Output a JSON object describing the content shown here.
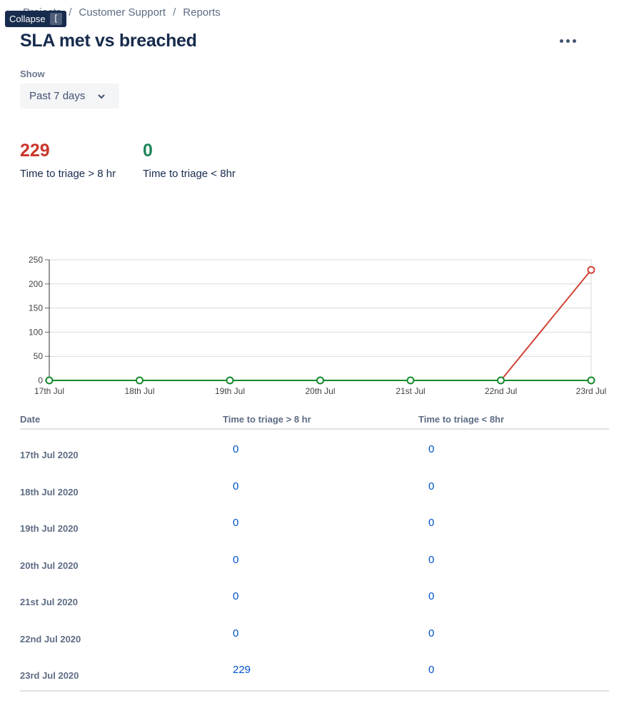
{
  "breadcrumb": {
    "items": [
      "Projects",
      "Customer Support",
      "Reports"
    ],
    "separator": "/"
  },
  "tooltip": {
    "label": "Collapse",
    "shortcut": "["
  },
  "page": {
    "title": "SLA met vs breached",
    "more_icon": "more-horizontal-icon"
  },
  "filter": {
    "label": "Show",
    "selected": "Past 7 days",
    "icon": "chevron-down-icon"
  },
  "stats": [
    {
      "value": "229",
      "label": "Time to triage > 8 hr",
      "color": "#c9372c"
    },
    {
      "value": "0",
      "label": "Time to triage < 8hr",
      "color": "#1f845a"
    }
  ],
  "chart_data": {
    "type": "line",
    "categories": [
      "17th Jul",
      "18th Jul",
      "19th Jul",
      "20th Jul",
      "21st Jul",
      "22nd Jul",
      "23rd Jul"
    ],
    "ylim": [
      0,
      250
    ],
    "yticks": [
      0,
      50,
      100,
      150,
      200,
      250
    ],
    "grid": true,
    "series": [
      {
        "name": "Time to triage > 8 hr",
        "color": "#d04437",
        "values": [
          0,
          0,
          0,
          0,
          0,
          0,
          229
        ]
      },
      {
        "name": "Time to triage < 8hr",
        "color": "#14892c",
        "values": [
          0,
          0,
          0,
          0,
          0,
          0,
          0
        ]
      }
    ]
  },
  "table": {
    "headers": [
      "Date",
      "Time to triage > 8 hr",
      "Time to triage < 8hr"
    ],
    "rows": [
      {
        "date": "17th Jul 2020",
        "over": "0",
        "under": "0"
      },
      {
        "date": "18th Jul 2020",
        "over": "0",
        "under": "0"
      },
      {
        "date": "19th Jul 2020",
        "over": "0",
        "under": "0"
      },
      {
        "date": "20th Jul 2020",
        "over": "0",
        "under": "0"
      },
      {
        "date": "21st Jul 2020",
        "over": "0",
        "under": "0"
      },
      {
        "date": "22nd Jul 2020",
        "over": "0",
        "under": "0"
      },
      {
        "date": "23rd Jul 2020",
        "over": "229",
        "under": "0"
      }
    ]
  }
}
